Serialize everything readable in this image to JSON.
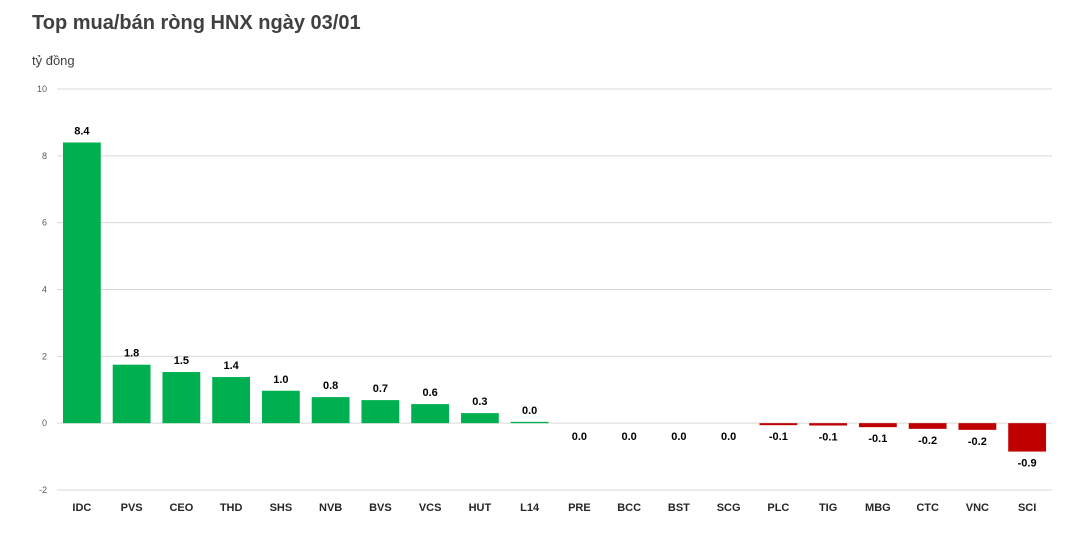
{
  "header": {
    "title": "Top mua/bán ròng HNX ngày 03/01",
    "unit": "tỷ đồng"
  },
  "chart_data": {
    "type": "bar",
    "title": "Top mua/bán ròng HNX ngày 03/01",
    "ylabel": "tỷ đồng",
    "xlabel": "",
    "ylim": [
      -2,
      10
    ],
    "yticks": [
      -2,
      0,
      2,
      4,
      6,
      8,
      10
    ],
    "grid": true,
    "categories": [
      "IDC",
      "PVS",
      "CEO",
      "THD",
      "SHS",
      "NVB",
      "BVS",
      "VCS",
      "HUT",
      "L14",
      "PRE",
      "BCC",
      "BST",
      "SCG",
      "PLC",
      "TIG",
      "MBG",
      "CTC",
      "VNC",
      "SCI"
    ],
    "values": [
      8.4,
      1.75,
      1.53,
      1.38,
      0.97,
      0.78,
      0.69,
      0.57,
      0.3,
      0.04,
      0.0,
      0.0,
      0.0,
      0.0,
      -0.06,
      -0.07,
      -0.12,
      -0.17,
      -0.2,
      -0.85
    ],
    "data_labels": [
      "8.4",
      "1.8",
      "1.5",
      "1.4",
      "1.0",
      "0.8",
      "0.7",
      "0.6",
      "0.3",
      "0.0",
      "0.0",
      "0.0",
      "0.0",
      "0.0",
      "-0.1",
      "-0.1",
      "-0.1",
      "-0.2",
      "-0.2",
      "-0.9"
    ],
    "colors": {
      "positive": "#00b050",
      "negative": "#c00000",
      "grid": "#d9d9d9"
    }
  }
}
